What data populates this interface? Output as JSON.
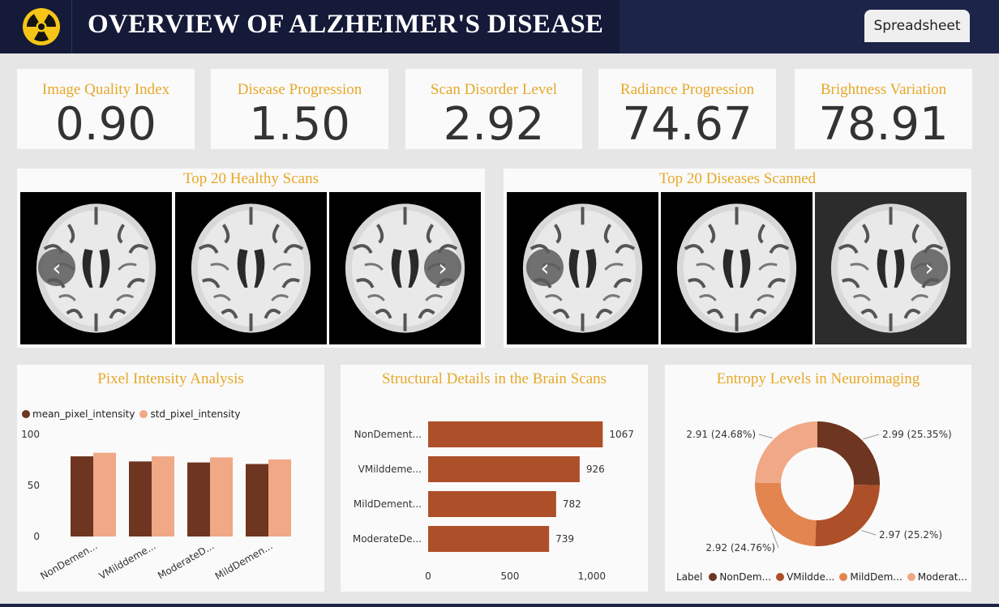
{
  "header": {
    "title": "OVERVIEW OF ALZHEIMER'S DISEASE",
    "logo_icon": "radiation-icon",
    "spreadsheet_label": "Spreadsheet"
  },
  "kpis": [
    {
      "label": "Image Quality Index",
      "value": "0.90"
    },
    {
      "label": "Disease Progression",
      "value": "1.50"
    },
    {
      "label": "Scan Disorder Level",
      "value": "2.92"
    },
    {
      "label": "Radiance Progression",
      "value": "74.67"
    },
    {
      "label": "Brightness Variation",
      "value": "78.91"
    }
  ],
  "galleries": {
    "healthy": {
      "title": "Top 20 Healthy Scans",
      "prev_icon": "chevron-left-icon",
      "next_icon": "chevron-right-icon"
    },
    "diseased": {
      "title": "Top 20 Diseases Scanned",
      "prev_icon": "chevron-left-icon",
      "next_icon": "chevron-right-icon"
    }
  },
  "colors": {
    "accent": "#e6a829",
    "header_bg": "#1c2448",
    "dark_brown": "#6e3520",
    "rust": "#ad4f29",
    "orange": "#e2854f",
    "peach": "#f0a886"
  },
  "chart_data": [
    {
      "type": "bar",
      "title": "Pixel Intensity Analysis",
      "categories": [
        "NonDemen...",
        "VMilddeme...",
        "ModerateD...",
        "MildDemen..."
      ],
      "series": [
        {
          "name": "mean_pixel_intensity",
          "values": [
            78.5,
            73.5,
            72.5,
            71
          ]
        },
        {
          "name": "std_pixel_intensity",
          "values": [
            82,
            78.5,
            77.5,
            75.5
          ]
        }
      ],
      "yticks": [
        "0",
        "50",
        "100"
      ],
      "ylim": [
        0,
        100
      ],
      "legend": "top-left"
    },
    {
      "type": "bar",
      "orientation": "horizontal",
      "title": "Structural Details in the Brain Scans",
      "categories": [
        "NonDement...",
        "VMilddeme...",
        "MildDement...",
        "ModerateDe..."
      ],
      "values": [
        1067,
        926,
        782,
        739
      ],
      "value_labels": [
        "1067",
        "926",
        "782",
        "739"
      ],
      "xticks": [
        "0",
        "500",
        "1,000"
      ],
      "xlim": [
        0,
        1100
      ]
    },
    {
      "type": "pie",
      "subtype": "donut",
      "title": "Entropy Levels in Neuroimaging",
      "legend_title": "Label",
      "slices": [
        {
          "label": "NonDem...",
          "value": 2.99,
          "text": "2.99 (25.35%)"
        },
        {
          "label": "VMildde...",
          "value": 2.97,
          "text": "2.97 (25.2%)"
        },
        {
          "label": "MildDem...",
          "value": 2.92,
          "text": "2.92 (24.76%)"
        },
        {
          "label": "Moderat...",
          "value": 2.91,
          "text": "2.91 (24.68%)"
        }
      ],
      "legend": "bottom"
    }
  ]
}
